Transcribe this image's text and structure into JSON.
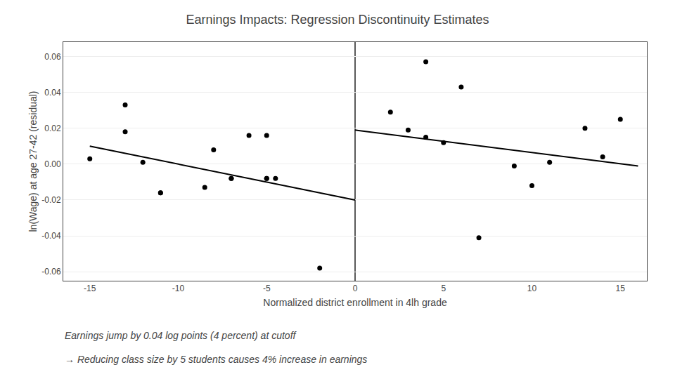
{
  "chart_data": {
    "type": "scatter",
    "title": "Earnings Impacts: Regression Discontinuity Estimates",
    "xlabel": "Normalized district enrollment in 4lh grade",
    "ylabel": "ln(Wage) at age 27-42 (residual)",
    "annotations": [
      "Earnings jump by 0.04 log points (4 percent) at cutoff",
      "→ Reducing class size by 5 students causes 4% increase in earnings"
    ],
    "xlim": [
      -16.5,
      16.5
    ],
    "ylim": [
      -0.065,
      0.068
    ],
    "xticks": [
      -15,
      -10,
      -5,
      0,
      5,
      10,
      15
    ],
    "yticks": [
      -0.06,
      -0.04,
      -0.02,
      {
        "value": 0,
        "label": "0.00"
      },
      0.02,
      0.04,
      0.06
    ],
    "grid": "y",
    "series": [
      {
        "type": "scatter",
        "marker": "circle",
        "color": "#000000",
        "x": [
          -15,
          -13,
          -13,
          -12,
          -11,
          -11,
          -8,
          -8.5,
          -7,
          -7,
          -6,
          -5,
          -5,
          -4.5,
          -5,
          -2,
          2,
          3,
          4,
          4,
          5,
          6,
          7,
          9,
          10,
          11,
          13,
          14,
          15
        ],
        "values": [
          0.003,
          0.033,
          0.018,
          0.001,
          -0.016,
          -0.016,
          0.008,
          -0.013,
          -0.008,
          -0.008,
          0.016,
          -0.008,
          -0.008,
          -0.008,
          0.016,
          -0.058,
          0.029,
          0.019,
          0.015,
          0.057,
          0.012,
          0.043,
          -0.041,
          -0.001,
          -0.012,
          0.001,
          0.02,
          0.004,
          0.025
        ]
      },
      {
        "type": "line",
        "line_style": "solid",
        "color": "#000000",
        "x": [
          -15,
          0
        ],
        "values": [
          0.01,
          -0.02
        ]
      },
      {
        "type": "line",
        "line_style": "solid",
        "color": "#000000",
        "x": [
          0,
          16
        ],
        "values": [
          0.019,
          -0.001
        ]
      },
      {
        "type": "vline",
        "line_style": "solid",
        "color": "#000000",
        "x": [
          0
        ]
      }
    ]
  }
}
